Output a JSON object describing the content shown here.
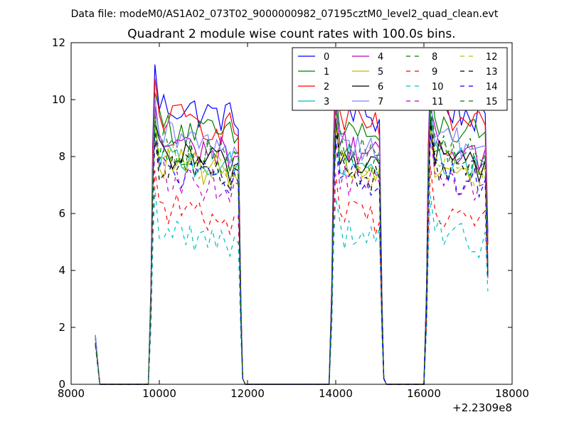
{
  "suptitle": "Data file: modeM0/AS1A02_073T02_9000000982_07195cztM0_level2_quad_clean.evt",
  "chart_data": {
    "type": "line",
    "title": "Quadrant 2 module wise count rates with 100.0s bins.",
    "xlabel": "",
    "ylabel": "",
    "x_offset_label": "+2.2309e8",
    "xlim": [
      8000,
      18000
    ],
    "ylim": [
      0,
      12
    ],
    "xticks": [
      8000,
      10000,
      12000,
      14000,
      16000,
      18000
    ],
    "yticks": [
      0,
      2,
      4,
      6,
      8,
      10,
      12
    ],
    "grid": false,
    "legend": {
      "placement": "top-right",
      "columns": 4
    },
    "x_bin_width": 100,
    "segments": [
      {
        "start": 8550,
        "end": 8650,
        "level_index": null
      },
      {
        "start": 9750,
        "end": 11850
      },
      {
        "start": 13850,
        "end": 15050
      },
      {
        "start": 16000,
        "end": 17450
      }
    ],
    "series": [
      {
        "name": "0",
        "color": "#0000ff",
        "style": "solid",
        "level": 9.9
      },
      {
        "name": "1",
        "color": "#008000",
        "style": "solid",
        "level": 9.2
      },
      {
        "name": "2",
        "color": "#ff0000",
        "style": "solid",
        "level": 9.5
      },
      {
        "name": "3",
        "color": "#00bfbf",
        "style": "solid",
        "level": 8.1
      },
      {
        "name": "4",
        "color": "#bf00bf",
        "style": "solid",
        "level": 8.6
      },
      {
        "name": "5",
        "color": "#bfbf00",
        "style": "solid",
        "level": 7.9
      },
      {
        "name": "6",
        "color": "#000000",
        "style": "solid",
        "level": 8.2
      },
      {
        "name": "7",
        "color": "#8080ff",
        "style": "solid",
        "level": 8.8
      },
      {
        "name": "8",
        "color": "#008000",
        "style": "dashed",
        "level": 8.5
      },
      {
        "name": "9",
        "color": "#ff0000",
        "style": "dashed",
        "level": 6.3
      },
      {
        "name": "10",
        "color": "#00bfbf",
        "style": "dashed",
        "level": 5.5
      },
      {
        "name": "11",
        "color": "#bf00bf",
        "style": "dashed",
        "level": 7.4
      },
      {
        "name": "12",
        "color": "#bfbf00",
        "style": "dashed",
        "level": 8.0
      },
      {
        "name": "13",
        "color": "#000000",
        "style": "dashed",
        "level": 7.8
      },
      {
        "name": "14",
        "color": "#0000ff",
        "style": "dashed",
        "level": 7.6
      },
      {
        "name": "15",
        "color": "#008000",
        "style": "dashed",
        "level": 8.3
      }
    ]
  }
}
